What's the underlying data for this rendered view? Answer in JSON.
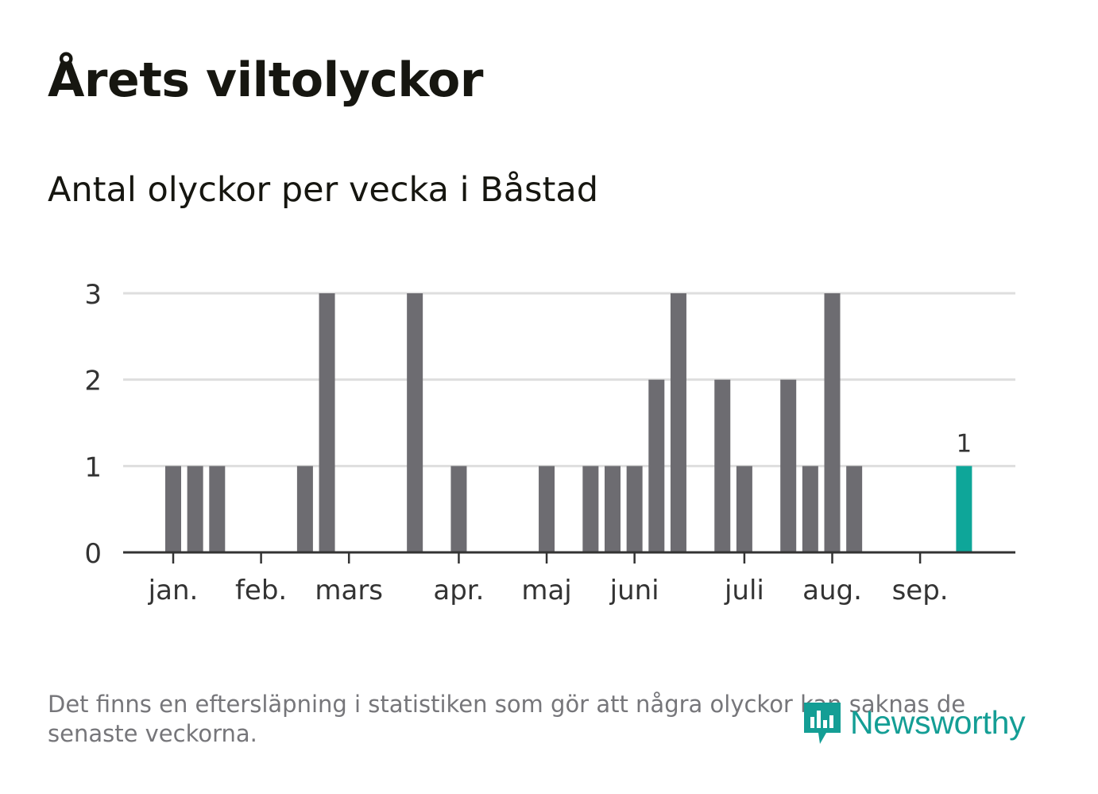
{
  "chart_data": {
    "type": "bar",
    "title": "Årets viltolyckor",
    "subtitle": "Antal olyckor per vecka i Båstad",
    "xlabel": "",
    "ylabel": "",
    "ylim": [
      0,
      3
    ],
    "yticks": [
      "0",
      "1",
      "2",
      "3"
    ],
    "grid": true,
    "legend": "none",
    "month_labels": [
      {
        "label": "jan.",
        "week": 1
      },
      {
        "label": "feb.",
        "week": 5
      },
      {
        "label": "mars",
        "week": 9
      },
      {
        "label": "apr.",
        "week": 14
      },
      {
        "label": "maj",
        "week": 18
      },
      {
        "label": "juni",
        "week": 22
      },
      {
        "label": "juli",
        "week": 27
      },
      {
        "label": "aug.",
        "week": 31
      },
      {
        "label": "sep.",
        "week": 35
      }
    ],
    "weeks": [
      1,
      2,
      3,
      4,
      5,
      6,
      7,
      8,
      9,
      10,
      11,
      12,
      13,
      14,
      15,
      16,
      17,
      18,
      19,
      20,
      21,
      22,
      23,
      24,
      25,
      26,
      27,
      28,
      29,
      30,
      31,
      32,
      33,
      34,
      35,
      36,
      37
    ],
    "values": [
      1,
      1,
      1,
      0,
      0,
      0,
      1,
      3,
      0,
      0,
      0,
      3,
      0,
      1,
      0,
      0,
      0,
      1,
      0,
      1,
      1,
      1,
      2,
      3,
      0,
      2,
      1,
      0,
      2,
      1,
      3,
      1,
      0,
      0,
      0,
      0,
      1
    ],
    "highlight": {
      "week": 37,
      "value": 1,
      "label": "1"
    },
    "colors": {
      "bar": "#6d6c71",
      "highlight": "#0ea699",
      "grid": "#dedede",
      "axis": "#333333"
    }
  },
  "footnote": "Det finns en eftersläpning i statistiken som gör att några olyckor kan saknas de senaste veckorna.",
  "logo": {
    "text": "Newsworthy",
    "icon": "newsworthy-chart-bubble-icon",
    "color": "#149e95"
  }
}
